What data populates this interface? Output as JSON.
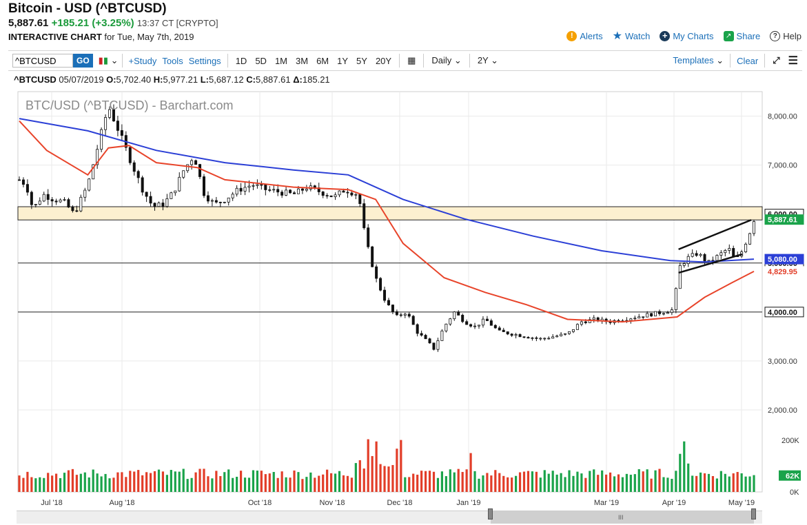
{
  "header": {
    "title": "Bitcoin - USD (^BTCUSD)",
    "price": "5,887.61",
    "change": "+185.21 (+3.25%)",
    "time": "13:37 CT [CRYPTO]",
    "subtitle_bold": "INTERACTIVE CHART",
    "subtitle_rest": " for Tue, May 7th, 2019"
  },
  "nav": {
    "alerts": "Alerts",
    "watch": "Watch",
    "mycharts": "My Charts",
    "share": "Share",
    "help": "Help"
  },
  "toolbar": {
    "symbol_value": "^BTCUSD",
    "go": "GO",
    "study": "+Study",
    "tools": "Tools",
    "settings": "Settings",
    "periods": [
      "1D",
      "5D",
      "1M",
      "3M",
      "6M",
      "1Y",
      "5Y",
      "20Y"
    ],
    "interval": "Daily",
    "range": "2Y",
    "templates": "Templates",
    "clear": "Clear"
  },
  "ohlc": {
    "symbol": "^BTCUSD",
    "date": "05/07/2019",
    "o_label": "O:",
    "o": "5,702.40",
    "h_label": "H:",
    "h": "5,977.21",
    "l_label": "L:",
    "l": "5,687.12",
    "c_label": "C:",
    "c": "5,887.61",
    "d_label": "Δ:",
    "d": "185.21"
  },
  "chart_data": {
    "type": "candlestick",
    "watermark": "BTC/USD (^BTCUSD) - Barchart.com",
    "x_labels": [
      "Jul '18",
      "Aug '18",
      "Oct '18",
      "Nov '18",
      "Dec '18",
      "Jan '19",
      "Mar '19",
      "Apr '19",
      "May '19"
    ],
    "y_ticks": [
      "8,000.00",
      "7,000.00",
      "4,000.00",
      "3,000.00",
      "2,000.00"
    ],
    "ylim": [
      2000,
      8500
    ],
    "price_tags": [
      {
        "label": "6,000.00",
        "value": 6000,
        "style": "outline"
      },
      {
        "label": "5,887.61",
        "value": 5887.61,
        "style": "green"
      },
      {
        "label": "5,000.00",
        "value": 5000,
        "style": "outline"
      },
      {
        "label": "5,080.00",
        "value": 5080,
        "style": "blue"
      },
      {
        "label": "4,829.95",
        "value": 4829.95,
        "style": "red"
      },
      {
        "label": "4,000.00",
        "value": 4000,
        "style": "outline"
      }
    ],
    "horizontal_lines": [
      5000,
      4000
    ],
    "zone": [
      5880,
      6150
    ],
    "channel": {
      "upper": [
        [
          5280,
          5880
        ]
      ],
      "lower": [
        [
          4800,
          5180
        ]
      ]
    },
    "volume_ticks": [
      "200K",
      "0K"
    ],
    "volume_tag": "62K",
    "volume_ylim": [
      0,
      250000
    ],
    "colors": {
      "up": "#1aa34a",
      "down": "#e23d28",
      "ma_fast": "#e8442a",
      "ma_slow": "#2b3fd6",
      "zone": "#fdf0d0"
    }
  },
  "scrollbar": {
    "grip": "III"
  }
}
